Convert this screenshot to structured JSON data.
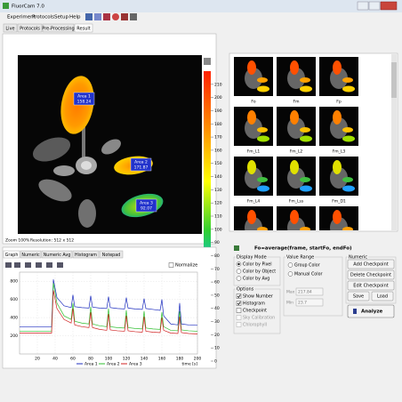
{
  "window": {
    "title": "FluorCam 7.0"
  },
  "menu": [
    "Experiment",
    "Protocols",
    "Setup",
    "Help"
  ],
  "tabs": [
    "Live",
    "Protocols",
    "Pre-Processing",
    "Result"
  ],
  "image": {
    "areas": [
      {
        "label": "Area 1",
        "value": 158.24
      },
      {
        "label": "Area 2",
        "value": 171.87
      },
      {
        "label": "Area 3",
        "value": 92.07
      }
    ],
    "zoom": "Zoom 100%",
    "resolution": "Resolution: 512 x 512"
  },
  "colorbar": {
    "lim": [
      0,
      220
    ],
    "ticks": [
      210,
      200,
      190,
      180,
      170,
      160,
      150,
      140,
      130,
      120,
      110,
      100,
      90,
      80,
      70,
      60,
      50,
      40,
      30,
      20,
      10,
      0
    ]
  },
  "thumbnails": [
    "Fo",
    "Fm",
    "Fp",
    "Fm_L1",
    "Fm_L2",
    "Fm_L3",
    "Fm_L4",
    "Fm_Lss",
    "Fm_D1"
  ],
  "formula": "Fo=average(frame, startFo, endFo)",
  "graph_tabs": [
    "Graph",
    "Numeric",
    "Numeric Avg",
    "Histogram",
    "Notepad"
  ],
  "normalize": "Normalize",
  "graph": {
    "type": "line",
    "x": [
      0,
      10,
      20,
      30,
      36,
      38,
      42,
      50,
      58,
      60,
      62,
      70,
      78,
      80,
      82,
      90,
      98,
      100,
      102,
      110,
      118,
      120,
      122,
      130,
      138,
      140,
      142,
      150,
      158,
      160,
      162,
      170,
      178,
      180,
      182,
      190,
      200
    ],
    "series": [
      {
        "name": "Area 1",
        "color": "#1f2fbf",
        "values": [
          300,
          300,
          300,
          300,
          300,
          820,
          620,
          530,
          510,
          650,
          520,
          510,
          505,
          640,
          515,
          505,
          500,
          630,
          510,
          500,
          495,
          620,
          505,
          495,
          490,
          610,
          500,
          490,
          480,
          600,
          420,
          330,
          320,
          560,
          330,
          320,
          315
        ]
      },
      {
        "name": "Area 2",
        "color": "#2fbf2f",
        "values": [
          250,
          250,
          250,
          250,
          250,
          780,
          560,
          420,
          380,
          560,
          360,
          340,
          330,
          520,
          330,
          310,
          300,
          500,
          300,
          290,
          285,
          480,
          290,
          280,
          275,
          470,
          285,
          275,
          270,
          460,
          300,
          260,
          255,
          470,
          265,
          255,
          250
        ]
      },
      {
        "name": "Area 3",
        "color": "#d02020",
        "values": [
          230,
          230,
          230,
          230,
          230,
          700,
          500,
          380,
          340,
          500,
          320,
          300,
          290,
          460,
          290,
          270,
          260,
          440,
          265,
          255,
          250,
          420,
          255,
          245,
          240,
          410,
          250,
          240,
          235,
          400,
          260,
          230,
          225,
          410,
          235,
          225,
          220
        ]
      }
    ],
    "xlim": [
      0,
      200
    ],
    "ylim": [
      0,
      900
    ],
    "xticks": [
      20,
      40,
      60,
      80,
      100,
      120,
      140,
      160,
      180,
      200
    ],
    "yticks": [
      200,
      400,
      600,
      800
    ],
    "xlabel": "time [s]",
    "grid": true
  },
  "display_mode": {
    "title": "Display Mode",
    "selected": 0,
    "options": [
      "Color by Pixel",
      "Color by Object",
      "Color by Avg"
    ]
  },
  "options": {
    "title": "Options",
    "items": [
      {
        "label": "Show Number",
        "checked": true,
        "enabled": true
      },
      {
        "label": "Histogram",
        "checked": true,
        "enabled": true
      },
      {
        "label": "Checkpoint",
        "checked": false,
        "enabled": true
      },
      {
        "label": "Sky Calibration",
        "checked": false,
        "enabled": false
      },
      {
        "label": "Chlorophyll",
        "checked": false,
        "enabled": false
      }
    ]
  },
  "value_range": {
    "title": "Value Range",
    "options": [
      "Group Color",
      "Manual Color"
    ],
    "max_label": "Max",
    "max": 217.84,
    "min_label": "Min",
    "min": 23.7
  },
  "numeric": {
    "title": "Numeric",
    "buttons": [
      "Add Checkpoint",
      "Delete Checkpoint",
      "Edit Checkpoint"
    ],
    "save": "Save",
    "load": "Load"
  },
  "analyze": "Analyze"
}
